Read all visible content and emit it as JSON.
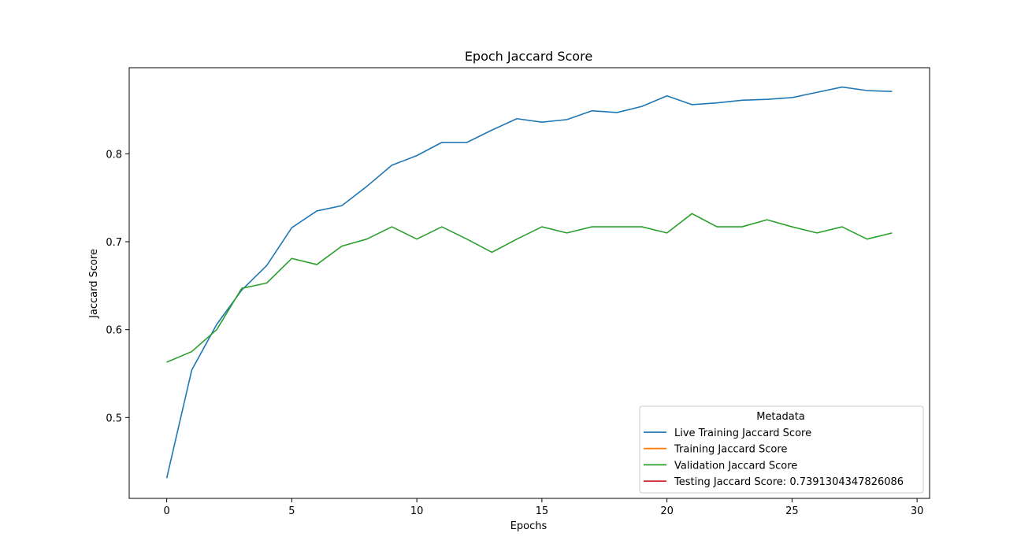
{
  "chart_data": {
    "type": "line",
    "title": "Epoch Jaccard Score",
    "xlabel": "Epochs",
    "ylabel": "Jaccard Score",
    "xlim": [
      -1.5,
      30.5
    ],
    "ylim": [
      0.408,
      0.898
    ],
    "xticks": [
      0,
      5,
      10,
      15,
      20,
      25,
      30
    ],
    "yticks": [
      0.5,
      0.6,
      0.7,
      0.8
    ],
    "grid": false,
    "legend": {
      "title": "Metadata",
      "placement": "lower-right"
    },
    "series": [
      {
        "name": "Live Training Jaccard Score",
        "color": "#1f77b4",
        "x": [
          0,
          1,
          2,
          3,
          4,
          5,
          6,
          7,
          8,
          9,
          10,
          11,
          12,
          13,
          14,
          15,
          16,
          17,
          18,
          19,
          20,
          21,
          22,
          23,
          24,
          25,
          26,
          27,
          28,
          29
        ],
        "values": [
          0.431,
          0.554,
          0.606,
          0.645,
          0.673,
          0.716,
          0.735,
          0.741,
          0.763,
          0.787,
          0.798,
          0.813,
          0.813,
          0.827,
          0.84,
          0.836,
          0.839,
          0.849,
          0.847,
          0.854,
          0.866,
          0.856,
          0.858,
          0.861,
          0.862,
          0.864,
          0.87,
          0.876,
          0.872,
          0.871
        ]
      },
      {
        "name": "Training Jaccard Score",
        "color": "#ff7f0e",
        "x": [],
        "values": []
      },
      {
        "name": "Validation Jaccard Score",
        "color": "#2ca02c",
        "x": [
          0,
          1,
          2,
          3,
          4,
          5,
          6,
          7,
          8,
          9,
          10,
          11,
          12,
          13,
          14,
          15,
          16,
          17,
          18,
          19,
          20,
          21,
          22,
          23,
          24,
          25,
          26,
          27,
          28,
          29
        ],
        "values": [
          0.563,
          0.575,
          0.6,
          0.647,
          0.653,
          0.681,
          0.674,
          0.695,
          0.703,
          0.717,
          0.703,
          0.717,
          0.703,
          0.688,
          0.703,
          0.717,
          0.71,
          0.717,
          0.717,
          0.717,
          0.71,
          0.732,
          0.717,
          0.717,
          0.725,
          0.717,
          0.71,
          0.717,
          0.703,
          0.71
        ]
      },
      {
        "name": "Testing Jaccard Score: 0.7391304347826086",
        "color": "#d62728",
        "x": [],
        "values": []
      }
    ]
  }
}
